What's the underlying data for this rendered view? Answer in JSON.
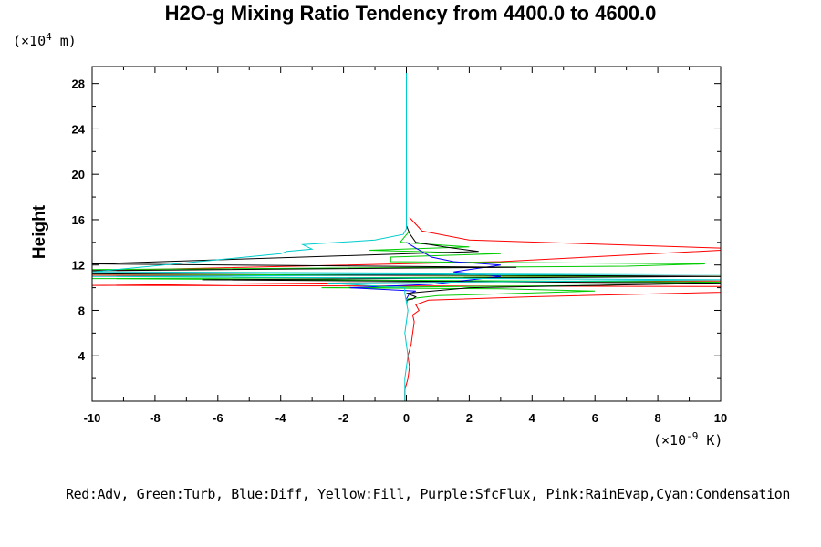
{
  "chart_data": {
    "type": "line",
    "title": "H2O-g Mixing Ratio Tendency from 4400.0 to 4600.0",
    "ylabel": "Height",
    "xlabel": "",
    "y_units_base": "(×10",
    "y_units_exp": "4",
    "y_units_tail": " m)",
    "x_units_base": "(×10",
    "x_units_exp": "-9",
    "x_units_tail": " K)",
    "xlim": [
      -10,
      10
    ],
    "ylim": [
      0,
      29.5
    ],
    "x_ticks": [
      -10,
      -8,
      -6,
      -4,
      -2,
      0,
      2,
      4,
      6,
      8,
      10
    ],
    "x_tick_labels": [
      "-10",
      "-8",
      "-6",
      "-4",
      "-2",
      "0",
      "2",
      "4",
      "6",
      "8",
      "10"
    ],
    "y_ticks": [
      4,
      8,
      12,
      16,
      20,
      24,
      28
    ],
    "y_tick_labels": [
      "4",
      "8",
      "12",
      "16",
      "20",
      "24",
      "28"
    ],
    "legend_text": "Red:Adv, Green:Turb, Blue:Diff, Yellow:Fill, Purple:SfcFlux, Pink:RainEvap,Cyan:Condensation",
    "series": [
      {
        "name": "Adv",
        "color": "#ff0000",
        "points": [
          [
            -0.05,
            0
          ],
          [
            -0.05,
            1
          ],
          [
            0.05,
            2
          ],
          [
            0.1,
            3
          ],
          [
            0.05,
            4
          ],
          [
            0.15,
            5
          ],
          [
            0.2,
            6
          ],
          [
            0.25,
            7
          ],
          [
            0.2,
            7.6
          ],
          [
            0.4,
            8
          ],
          [
            0.3,
            8.5
          ],
          [
            0.7,
            8.9
          ],
          [
            4,
            9.2
          ],
          [
            10,
            9.6
          ],
          [
            10,
            10.1
          ],
          [
            -10,
            10.2
          ],
          [
            0.5,
            10.5
          ],
          [
            10,
            10.6
          ],
          [
            10,
            11.0
          ],
          [
            -10,
            11.1
          ],
          [
            -10,
            11.5
          ],
          [
            3,
            12.3
          ],
          [
            10,
            13.3
          ],
          [
            10,
            13.5
          ],
          [
            2,
            14.2
          ],
          [
            0.5,
            15
          ],
          [
            0.1,
            16.2
          ]
        ]
      },
      {
        "name": "Turb",
        "color": "#00cc00",
        "points": [
          [
            0,
            8.5
          ],
          [
            0.05,
            9
          ],
          [
            1,
            9.3
          ],
          [
            6,
            9.7
          ],
          [
            3,
            9.9
          ],
          [
            -2.7,
            10
          ],
          [
            6,
            10.2
          ],
          [
            10,
            10.5
          ],
          [
            -10,
            10.8
          ],
          [
            10,
            11
          ],
          [
            -10,
            11.2
          ],
          [
            -10,
            11.6
          ],
          [
            7,
            11.9
          ],
          [
            9.5,
            12.1
          ],
          [
            -0.5,
            12.3
          ],
          [
            -0.5,
            12.7
          ],
          [
            3,
            13
          ],
          [
            -1.2,
            13.3
          ],
          [
            2,
            13.6
          ],
          [
            -0.2,
            14
          ],
          [
            0.1,
            15
          ]
        ]
      },
      {
        "name": "Diff",
        "color": "#0000ff",
        "points": [
          [
            0,
            9
          ],
          [
            0.1,
            9.5
          ],
          [
            0.3,
            9.7
          ],
          [
            -1.8,
            10
          ],
          [
            0.8,
            10.3
          ],
          [
            3,
            11
          ],
          [
            1.5,
            11.4
          ],
          [
            3,
            12
          ],
          [
            1.5,
            12.3
          ],
          [
            0.8,
            12.7
          ],
          [
            0.3,
            13.5
          ],
          [
            0,
            14
          ]
        ]
      },
      {
        "name": "Fill",
        "color": "#000000",
        "points": [
          [
            0,
            8.9
          ],
          [
            0.2,
            9
          ],
          [
            0.3,
            9.2
          ],
          [
            0,
            9.5
          ],
          [
            2,
            10
          ],
          [
            10,
            10.4
          ],
          [
            -6.5,
            10.7
          ],
          [
            10,
            11.0
          ],
          [
            -10,
            11.3
          ],
          [
            -10,
            11.5
          ],
          [
            3.5,
            11.8
          ],
          [
            -10,
            12.1
          ],
          [
            2.3,
            13.2
          ],
          [
            1.2,
            13.6
          ],
          [
            0.3,
            14
          ],
          [
            0.1,
            14.8
          ],
          [
            0,
            15.5
          ]
        ]
      },
      {
        "name": "Condensation",
        "color": "#00cccc",
        "points": [
          [
            -0.05,
            0
          ],
          [
            -0.05,
            2
          ],
          [
            0.05,
            4
          ],
          [
            -0.05,
            6
          ],
          [
            0.05,
            8
          ],
          [
            -0.05,
            9.5
          ],
          [
            -0.05,
            10
          ],
          [
            -2.5,
            10.4
          ],
          [
            10,
            10.7
          ],
          [
            -10,
            11
          ],
          [
            10,
            11.2
          ],
          [
            -10,
            11.4
          ],
          [
            -4,
            13
          ],
          [
            -3.8,
            13.2
          ],
          [
            -3,
            13.4
          ],
          [
            -3.3,
            13.8
          ],
          [
            -1,
            14.2
          ],
          [
            -0.1,
            14.7
          ],
          [
            0,
            15.2
          ],
          [
            0,
            29.5
          ]
        ]
      }
    ]
  }
}
